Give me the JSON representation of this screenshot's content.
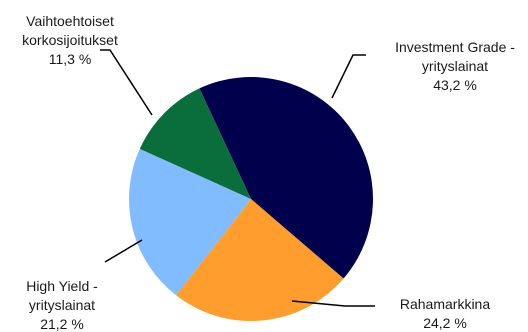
{
  "chart_data": {
    "type": "pie",
    "title": "",
    "slices": [
      {
        "name_lines": [
          "Investment Grade -",
          "yrityslainat"
        ],
        "value": 43.2,
        "value_label": "43,2 %",
        "color": "#00004d"
      },
      {
        "name_lines": [
          "Rahamarkkina"
        ],
        "value": 24.2,
        "value_label": "24,2 %",
        "color": "#ff9e2e"
      },
      {
        "name_lines": [
          "High Yield -",
          "yrityslainat"
        ],
        "value": 21.2,
        "value_label": "21,2 %",
        "color": "#80bcff"
      },
      {
        "name_lines": [
          "Vaihtoehtoiset",
          "korkosijoitukset"
        ],
        "value": 11.3,
        "value_label": "11,3 %",
        "color": "#0a6e3c"
      }
    ],
    "start_angle_deg": -25,
    "direction": "clockwise",
    "legend": "none",
    "labels": "outside-with-leader-lines"
  }
}
